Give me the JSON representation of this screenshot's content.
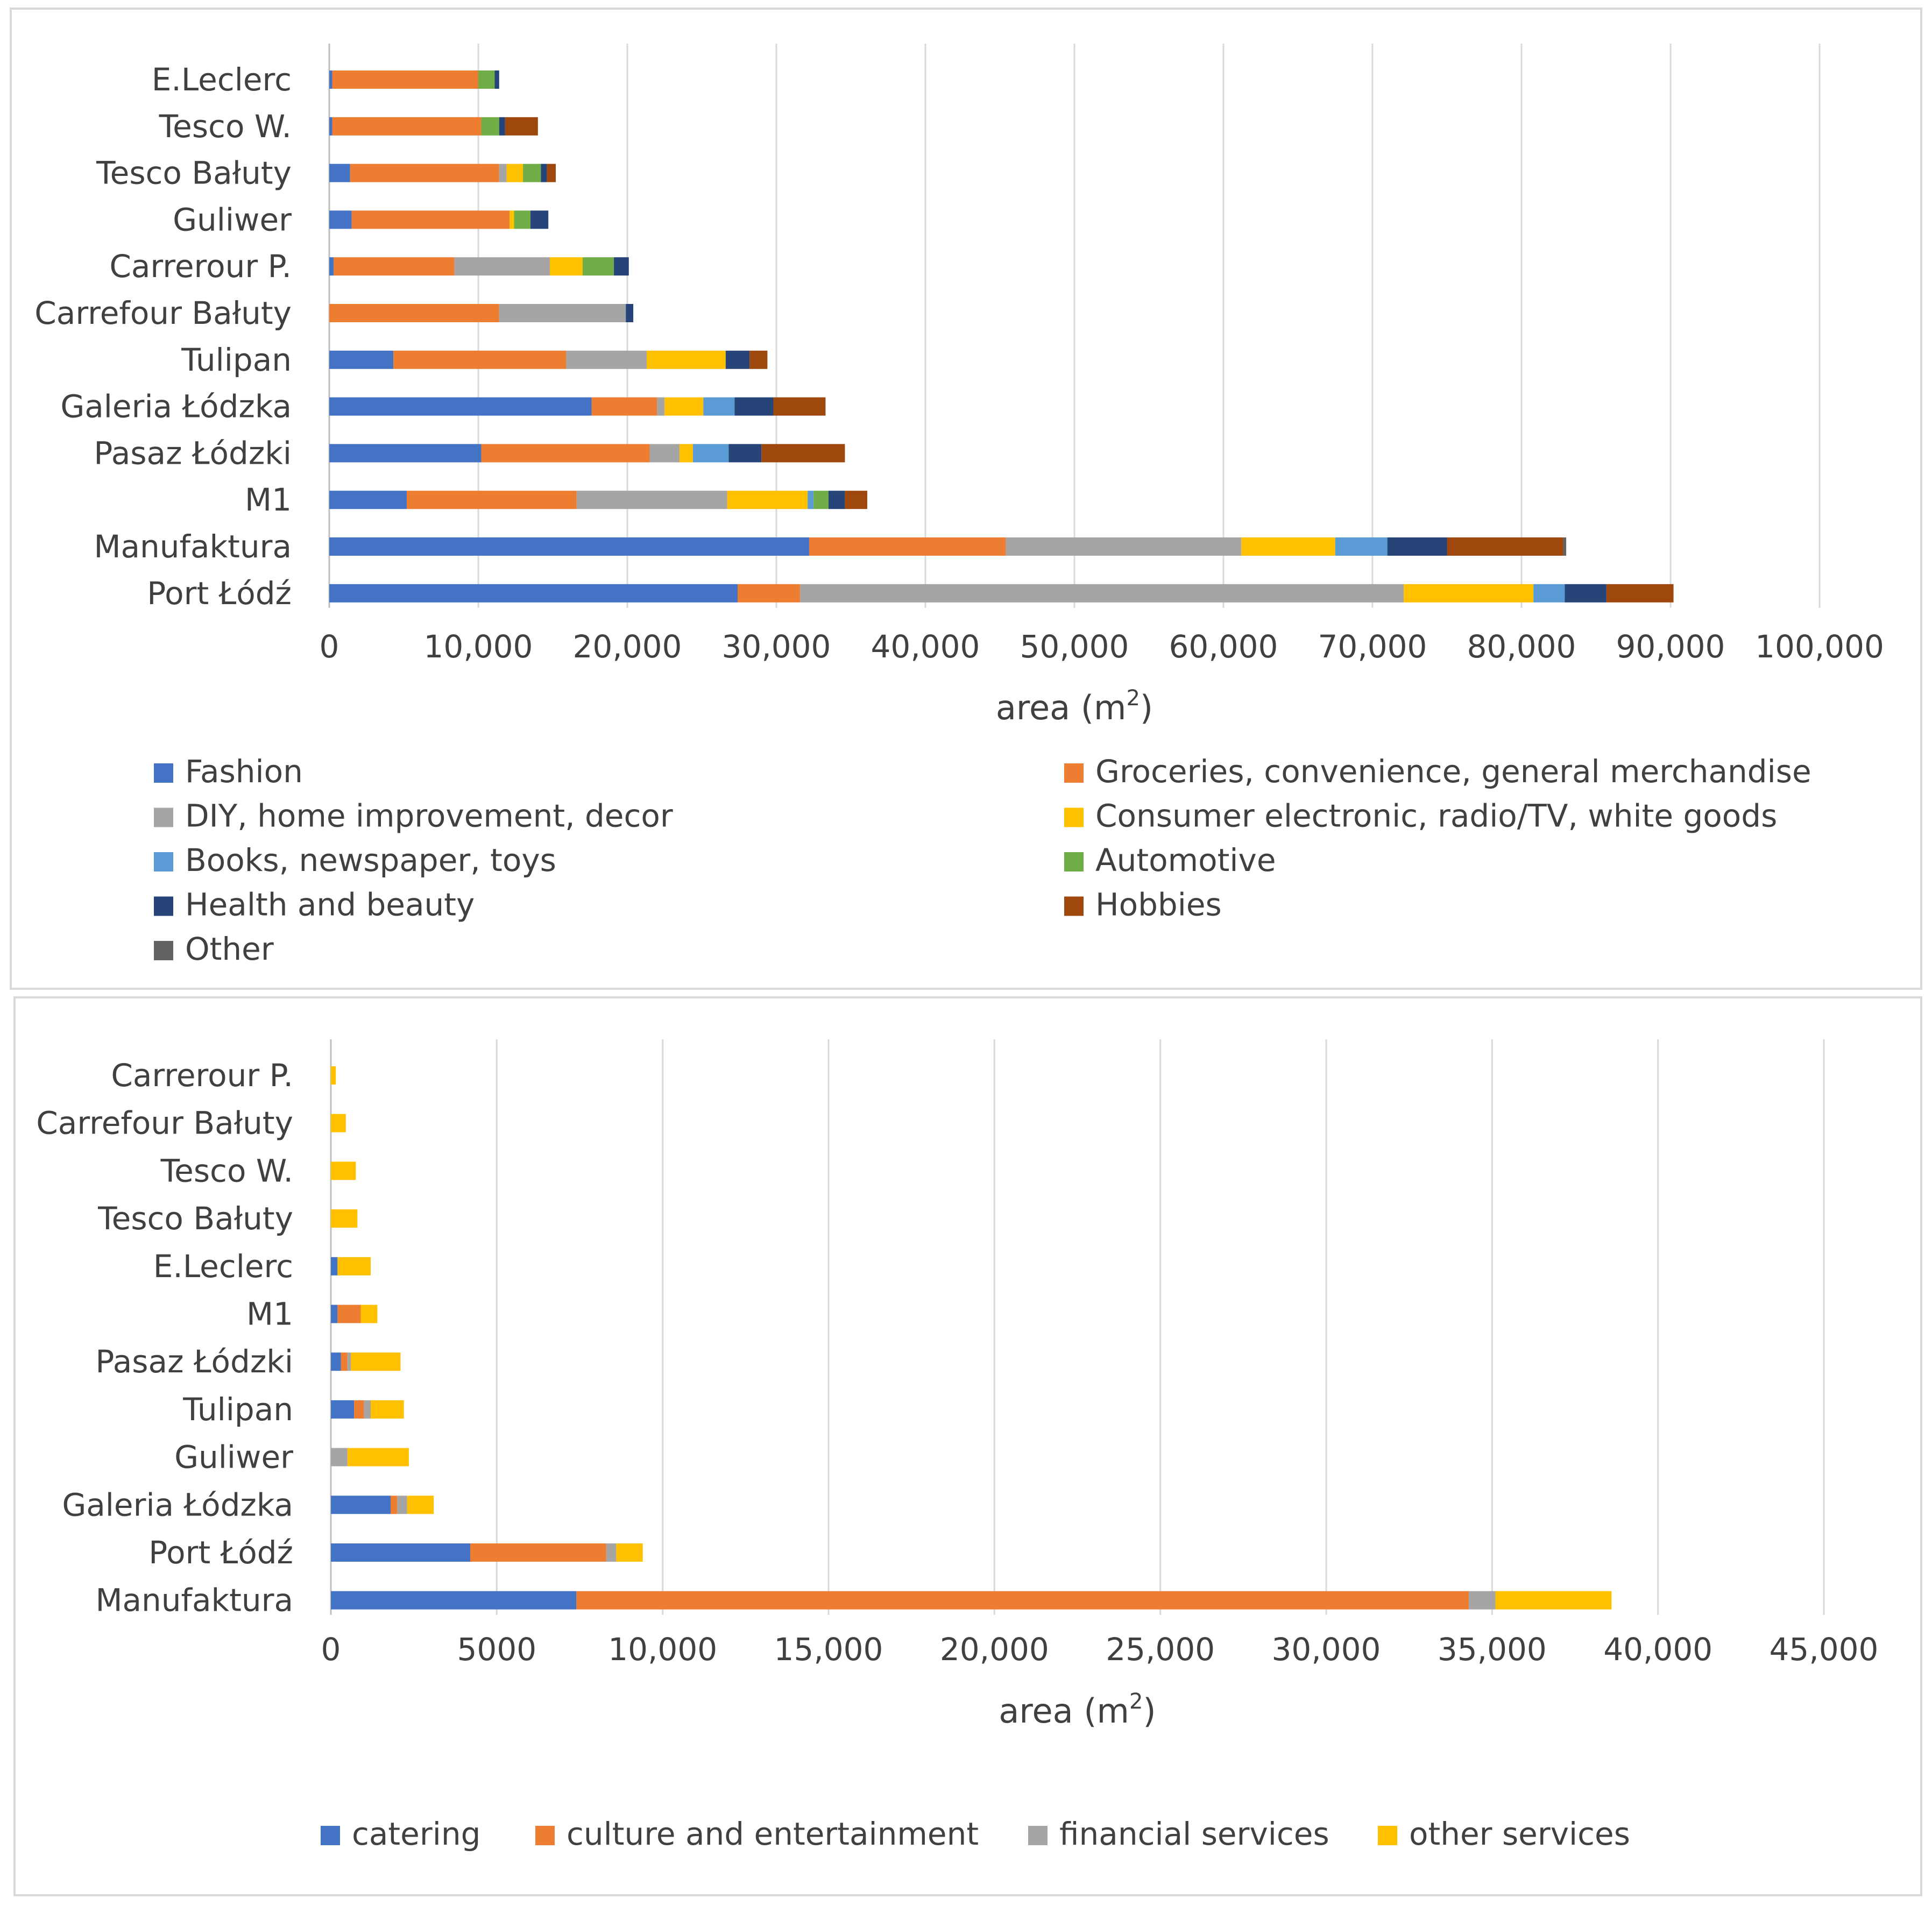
{
  "chart_data": [
    {
      "type": "bar",
      "orientation": "horizontal",
      "stacked": true,
      "xlabel": "area (m²)",
      "xlabel_main": "area (m",
      "xlabel_sup": "2",
      "xlabel_close": ")",
      "xlim": [
        0,
        100000
      ],
      "x_ticks": [
        "0",
        "10,000",
        "20,000",
        "30,000",
        "40,000",
        "50,000",
        "60,000",
        "70,000",
        "80,000",
        "90,000",
        "100,000"
      ],
      "grid": true,
      "legend_position": "bottom",
      "categories": [
        "E.Leclerc",
        "Tesco W.",
        "Tesco Bałuty",
        "Guliwer",
        "Carrerour P.",
        "Carrefour Bałuty",
        "Tulipan",
        "Galeria Łódzka",
        "Pasaz Łódzki",
        "M1",
        "Manufaktura",
        "Port Łódź"
      ],
      "series": [
        {
          "name": "Fashion",
          "color": "#4472c4",
          "values": [
            200,
            200,
            1400,
            1500,
            300,
            0,
            4300,
            17600,
            10200,
            5200,
            32200,
            27400
          ]
        },
        {
          "name": "Groceries, convenience, general merchandise",
          "color": "#ed7d31",
          "values": [
            9800,
            10000,
            10000,
            10600,
            8100,
            11400,
            11600,
            4400,
            11300,
            11400,
            13200,
            4200
          ]
        },
        {
          "name": "DIY, home improvement, decor",
          "color": "#a5a5a5",
          "values": [
            0,
            0,
            500,
            0,
            6400,
            8500,
            5400,
            500,
            2000,
            10100,
            15800,
            40500
          ]
        },
        {
          "name": "Consumer electronic, radio/TV, white goods",
          "color": "#ffc000",
          "values": [
            0,
            0,
            1100,
            300,
            2200,
            0,
            5300,
            2600,
            900,
            5400,
            6300,
            8700
          ]
        },
        {
          "name": "Books, newspaper, toys",
          "color": "#5b9bd5",
          "values": [
            0,
            0,
            0,
            0,
            0,
            0,
            0,
            2100,
            2400,
            400,
            3500,
            2100
          ]
        },
        {
          "name": "Automotive",
          "color": "#70ad47",
          "values": [
            1100,
            1200,
            1200,
            1100,
            2100,
            0,
            0,
            0,
            0,
            1000,
            0,
            0
          ]
        },
        {
          "name": "Health and beauty",
          "color": "#264478",
          "values": [
            300,
            400,
            400,
            1200,
            1000,
            500,
            1600,
            2600,
            2200,
            1100,
            4000,
            2800
          ]
        },
        {
          "name": "Hobbies",
          "color": "#9e480e",
          "values": [
            0,
            2200,
            600,
            0,
            0,
            0,
            1200,
            3500,
            5600,
            1500,
            7800,
            4500
          ]
        },
        {
          "name": "Other",
          "color": "#636363",
          "values": [
            0,
            0,
            0,
            0,
            0,
            0,
            0,
            0,
            0,
            0,
            200,
            0
          ]
        }
      ]
    },
    {
      "type": "bar",
      "orientation": "horizontal",
      "stacked": true,
      "xlabel": "area (m²)",
      "xlabel_main": "area (m",
      "xlabel_sup": "2",
      "xlabel_close": ")",
      "xlim": [
        0,
        45000
      ],
      "x_ticks": [
        "0",
        "5000",
        "10,000",
        "15,000",
        "20,000",
        "25,000",
        "30,000",
        "35,000",
        "40,000",
        "45,000"
      ],
      "grid": true,
      "legend_position": "bottom",
      "categories": [
        "Carrerour P.",
        "Carrefour Bałuty",
        "Tesco W.",
        "Tesco Bałuty",
        "E.Leclerc",
        "M1",
        "Pasaz Łódzki",
        "Tulipan",
        "Guliwer",
        "Galeria Łódzka",
        "Port Łódź",
        "Manufaktura"
      ],
      "series": [
        {
          "name": "catering",
          "color": "#4472c4",
          "values": [
            0,
            0,
            0,
            0,
            200,
            200,
            300,
            700,
            0,
            1800,
            4200,
            7400
          ]
        },
        {
          "name": "culture and entertainment",
          "color": "#ed7d31",
          "values": [
            0,
            0,
            0,
            0,
            0,
            700,
            200,
            300,
            0,
            200,
            4100,
            26900
          ]
        },
        {
          "name": "financial services",
          "color": "#a5a5a5",
          "values": [
            0,
            0,
            0,
            0,
            0,
            0,
            100,
            200,
            500,
            300,
            300,
            800
          ]
        },
        {
          "name": "other services",
          "color": "#ffc000",
          "values": [
            150,
            450,
            750,
            800,
            1000,
            500,
            1500,
            1000,
            1850,
            800,
            800,
            3500
          ]
        }
      ]
    }
  ]
}
